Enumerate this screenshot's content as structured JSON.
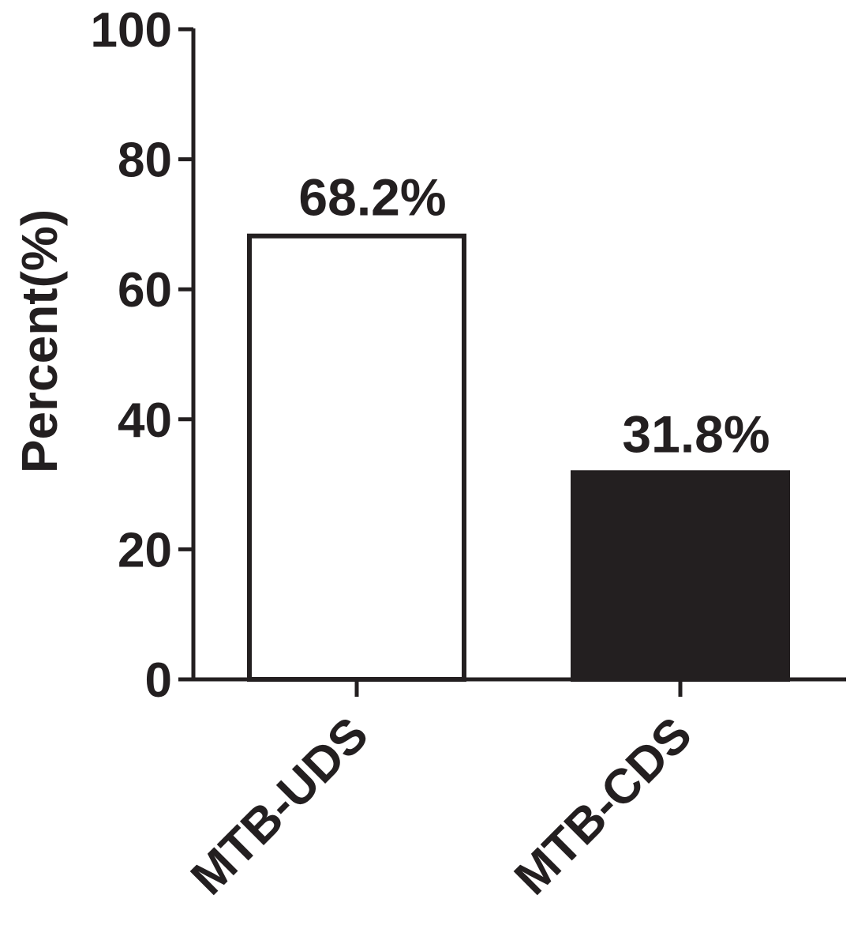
{
  "chart_data": {
    "type": "bar",
    "categories": [
      "MTB-UDS",
      "MTB-CDS"
    ],
    "values": [
      68.2,
      31.8
    ],
    "data_labels": [
      "68.2%",
      "31.8%"
    ],
    "bar_fills": [
      "#ffffff",
      "#231f20"
    ],
    "title": "",
    "xlabel": "",
    "ylabel": "Percent(%)",
    "ylim": [
      0,
      100
    ],
    "yticks": [
      0,
      20,
      40,
      60,
      80,
      100
    ],
    "ytick_labels": [
      "0",
      "20",
      "40",
      "60",
      "80",
      "100"
    ],
    "grid": false,
    "legend": "none"
  },
  "colors": {
    "ink": "#231f20",
    "background": "#ffffff"
  }
}
